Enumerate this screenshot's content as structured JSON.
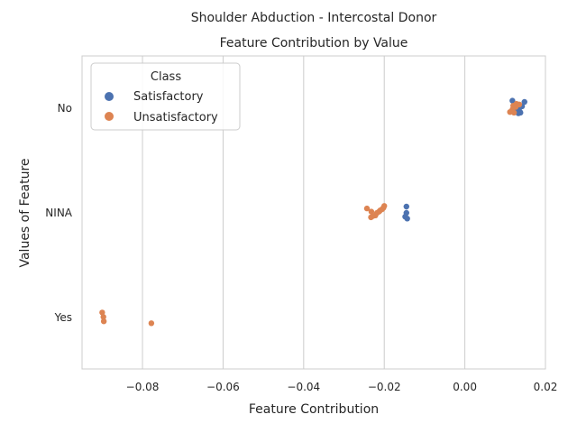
{
  "chart_data": {
    "type": "scatter",
    "title": "Shoulder Abduction - Intercostal Donor",
    "subtitle": "Feature Contribution by Value",
    "xlabel": "Feature Contribution",
    "ylabel": "Values of Feature",
    "xlim": [
      -0.095,
      0.02
    ],
    "x_ticks": [
      -0.08,
      -0.06,
      -0.04,
      -0.02,
      0.0,
      0.02
    ],
    "x_tick_labels": [
      "−0.08",
      "−0.06",
      "−0.04",
      "−0.02",
      "0.00",
      "0.02"
    ],
    "categories": [
      "No",
      "NINA",
      "Yes"
    ],
    "grid": "vertical",
    "legend": {
      "title": "Class",
      "position": "top-left",
      "entries": [
        "Satisfactory",
        "Unsatisfactory"
      ]
    },
    "colors": {
      "Satisfactory": "#4c72b0",
      "Unsatisfactory": "#dd8452"
    },
    "series": [
      {
        "name": "Satisfactory",
        "points": [
          {
            "category": "No",
            "x": 0.0118,
            "jitter": -0.12
          },
          {
            "category": "No",
            "x": 0.0148,
            "jitter": -0.1
          },
          {
            "category": "No",
            "x": 0.0125,
            "jitter": -0.05
          },
          {
            "category": "No",
            "x": 0.0142,
            "jitter": -0.03
          },
          {
            "category": "No",
            "x": 0.0132,
            "jitter": 0.0
          },
          {
            "category": "No",
            "x": 0.0122,
            "jitter": 0.02
          },
          {
            "category": "No",
            "x": 0.0136,
            "jitter": 0.05
          },
          {
            "category": "No",
            "x": 0.0128,
            "jitter": 0.06
          },
          {
            "category": "No",
            "x": 0.0133,
            "jitter": 0.08
          },
          {
            "category": "No",
            "x": 0.0138,
            "jitter": 0.07
          },
          {
            "category": "NINA",
            "x": -0.0145,
            "jitter": -0.1
          },
          {
            "category": "NINA",
            "x": -0.0145,
            "jitter": 0.0
          },
          {
            "category": "NINA",
            "x": -0.0148,
            "jitter": 0.06
          },
          {
            "category": "NINA",
            "x": -0.0143,
            "jitter": 0.09
          }
        ]
      },
      {
        "name": "Unsatisfactory",
        "points": [
          {
            "category": "No",
            "x": 0.0128,
            "jitter": -0.07
          },
          {
            "category": "No",
            "x": 0.0135,
            "jitter": -0.06
          },
          {
            "category": "No",
            "x": 0.012,
            "jitter": -0.04
          },
          {
            "category": "No",
            "x": 0.0126,
            "jitter": -0.02
          },
          {
            "category": "No",
            "x": 0.0118,
            "jitter": 0.02
          },
          {
            "category": "No",
            "x": 0.0112,
            "jitter": 0.06
          },
          {
            "category": "No",
            "x": 0.0122,
            "jitter": 0.07
          },
          {
            "category": "NINA",
            "x": -0.02,
            "jitter": -0.11
          },
          {
            "category": "NINA",
            "x": -0.0202,
            "jitter": -0.08
          },
          {
            "category": "NINA",
            "x": -0.0243,
            "jitter": -0.07
          },
          {
            "category": "NINA",
            "x": -0.0205,
            "jitter": -0.06
          },
          {
            "category": "NINA",
            "x": -0.021,
            "jitter": -0.04
          },
          {
            "category": "NINA",
            "x": -0.0213,
            "jitter": -0.02
          },
          {
            "category": "NINA",
            "x": -0.0232,
            "jitter": -0.02
          },
          {
            "category": "NINA",
            "x": -0.0218,
            "jitter": 0.0
          },
          {
            "category": "NINA",
            "x": -0.0222,
            "jitter": 0.04
          },
          {
            "category": "NINA",
            "x": -0.0228,
            "jitter": 0.05
          },
          {
            "category": "NINA",
            "x": -0.0233,
            "jitter": 0.07
          },
          {
            "category": "Yes",
            "x": -0.09,
            "jitter": -0.08
          },
          {
            "category": "Yes",
            "x": -0.0897,
            "jitter": -0.01
          },
          {
            "category": "Yes",
            "x": -0.0896,
            "jitter": 0.06
          },
          {
            "category": "Yes",
            "x": -0.0778,
            "jitter": 0.09
          }
        ]
      }
    ]
  }
}
